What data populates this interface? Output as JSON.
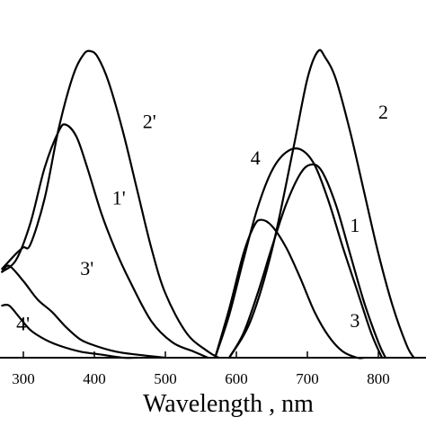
{
  "chart_data": {
    "type": "line",
    "title": "",
    "xlabel": "Wavelength , nm",
    "ylabel": "",
    "xlim": [
      270,
      850
    ],
    "ylim": [
      0,
      1.05
    ],
    "x_ticks": [
      300,
      400,
      500,
      600,
      700,
      800
    ],
    "grid": false,
    "series": [
      {
        "name": "1'",
        "x": [
          270,
          290,
          310,
          330,
          350,
          360,
          375,
          390,
          410,
          430,
          450,
          480,
          510,
          540,
          560
        ],
        "y": [
          0.28,
          0.32,
          0.44,
          0.62,
          0.74,
          0.76,
          0.72,
          0.62,
          0.47,
          0.35,
          0.25,
          0.12,
          0.05,
          0.02,
          0.0
        ]
      },
      {
        "name": "2'",
        "x": [
          270,
          290,
          300,
          310,
          330,
          350,
          370,
          385,
          395,
          405,
          420,
          440,
          460,
          480,
          500,
          530,
          560,
          575
        ],
        "y": [
          0.29,
          0.34,
          0.36,
          0.37,
          0.52,
          0.75,
          0.92,
          0.99,
          1.0,
          0.98,
          0.9,
          0.74,
          0.55,
          0.36,
          0.21,
          0.08,
          0.02,
          0.0
        ]
      },
      {
        "name": "3'",
        "x": [
          270,
          280,
          300,
          320,
          340,
          360,
          380,
          400,
          430,
          460,
          500
        ],
        "y": [
          0.28,
          0.3,
          0.25,
          0.19,
          0.15,
          0.1,
          0.06,
          0.04,
          0.02,
          0.01,
          0.0
        ]
      },
      {
        "name": "4'",
        "x": [
          270,
          280,
          295,
          310,
          330,
          350,
          380,
          410,
          440,
          460
        ],
        "y": [
          0.17,
          0.17,
          0.13,
          0.09,
          0.06,
          0.04,
          0.02,
          0.01,
          0.0,
          0.0
        ]
      },
      {
        "name": "1",
        "x": [
          590,
          610,
          630,
          650,
          670,
          690,
          705,
          720,
          740,
          760,
          780,
          800,
          810
        ],
        "y": [
          0.0,
          0.08,
          0.21,
          0.36,
          0.5,
          0.6,
          0.63,
          0.61,
          0.5,
          0.34,
          0.18,
          0.05,
          0.0
        ]
      },
      {
        "name": "2",
        "x": [
          590,
          620,
          650,
          680,
          700,
          715,
          725,
          740,
          760,
          780,
          800,
          820,
          840,
          850
        ],
        "y": [
          0.0,
          0.12,
          0.35,
          0.68,
          0.91,
          1.0,
          0.98,
          0.91,
          0.74,
          0.54,
          0.34,
          0.17,
          0.04,
          0.0
        ]
      },
      {
        "name": "3",
        "x": [
          570,
          590,
          610,
          625,
          635,
          650,
          670,
          690,
          710,
          730,
          750,
          770,
          780
        ],
        "y": [
          0.0,
          0.16,
          0.34,
          0.43,
          0.45,
          0.43,
          0.36,
          0.26,
          0.15,
          0.07,
          0.02,
          0.0,
          0.0
        ]
      },
      {
        "name": "4",
        "x": [
          570,
          590,
          610,
          630,
          650,
          670,
          690,
          710,
          730,
          750,
          770,
          790,
          805
        ],
        "y": [
          0.0,
          0.14,
          0.32,
          0.49,
          0.61,
          0.67,
          0.68,
          0.63,
          0.51,
          0.36,
          0.22,
          0.08,
          0.0
        ]
      }
    ]
  }
}
